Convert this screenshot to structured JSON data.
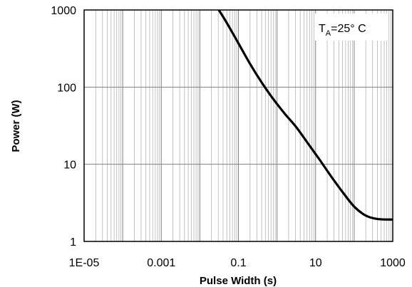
{
  "chart_data": {
    "type": "line",
    "title": "",
    "xlabel": "Pulse Width (s)",
    "ylabel": "Power (W)",
    "xscale": "log",
    "yscale": "log",
    "xlim": [
      1e-05,
      1000
    ],
    "ylim": [
      1,
      1000
    ],
    "grid": true,
    "x_tick_labels": [
      "1E-05",
      "0.001",
      "0.1",
      "10",
      "1000"
    ],
    "y_tick_labels": [
      "1",
      "10",
      "100",
      "1000"
    ],
    "annotation": {
      "main": "T",
      "sub": "A",
      "rest": "=25° C"
    },
    "series": [
      {
        "color": "#000000",
        "x": [
          0.031,
          0.05,
          0.1,
          0.2,
          0.4,
          0.8,
          1.6,
          3.2,
          6.4,
          12.8,
          25.6,
          51.2,
          102,
          205,
          409,
          1000
        ],
        "y": [
          1000,
          680,
          370,
          200,
          115,
          70,
          45,
          30,
          18.5,
          11.4,
          6.9,
          4.3,
          2.8,
          2.15,
          1.95,
          1.92
        ]
      }
    ]
  }
}
